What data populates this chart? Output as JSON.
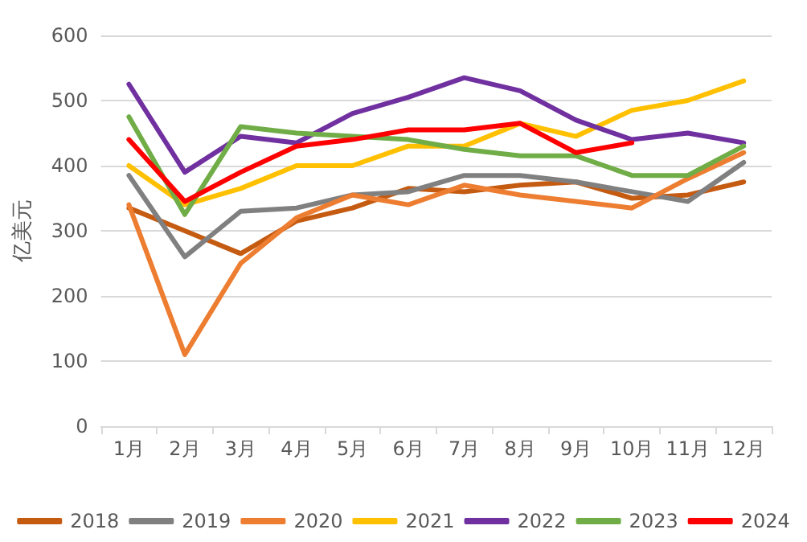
{
  "chart_data": {
    "type": "line",
    "ylabel": "亿美元",
    "categories": [
      "1月",
      "2月",
      "3月",
      "4月",
      "5月",
      "6月",
      "7月",
      "8月",
      "9月",
      "10月",
      "11月",
      "12月"
    ],
    "ylim": [
      0,
      600
    ],
    "yticks": [
      0,
      100,
      200,
      300,
      400,
      500,
      600
    ],
    "grid": "y",
    "legend": "bottom",
    "marker": "none",
    "line_style": "solid",
    "series": [
      {
        "name": "2018",
        "color": "#c55a11",
        "values": [
          335,
          300,
          265,
          315,
          335,
          365,
          360,
          370,
          375,
          350,
          355,
          375
        ]
      },
      {
        "name": "2019",
        "color": "#808080",
        "values": [
          385,
          260,
          330,
          335,
          355,
          360,
          385,
          385,
          375,
          360,
          345,
          405
        ]
      },
      {
        "name": "2020",
        "color": "#ed7d31",
        "values": [
          340,
          110,
          250,
          320,
          355,
          340,
          370,
          355,
          345,
          335,
          380,
          420
        ]
      },
      {
        "name": "2021",
        "color": "#ffc000",
        "values": [
          400,
          340,
          365,
          400,
          400,
          430,
          430,
          465,
          445,
          485,
          500,
          530
        ]
      },
      {
        "name": "2022",
        "color": "#7030a0",
        "values": [
          525,
          390,
          445,
          435,
          480,
          505,
          535,
          515,
          470,
          440,
          450,
          435
        ]
      },
      {
        "name": "2023",
        "color": "#70ad47",
        "values": [
          475,
          325,
          460,
          450,
          445,
          440,
          425,
          415,
          415,
          385,
          385,
          430
        ]
      },
      {
        "name": "2024",
        "color": "#ff0000",
        "values": [
          440,
          345,
          390,
          430,
          440,
          455,
          455,
          465,
          420,
          435,
          null,
          null
        ]
      }
    ]
  }
}
